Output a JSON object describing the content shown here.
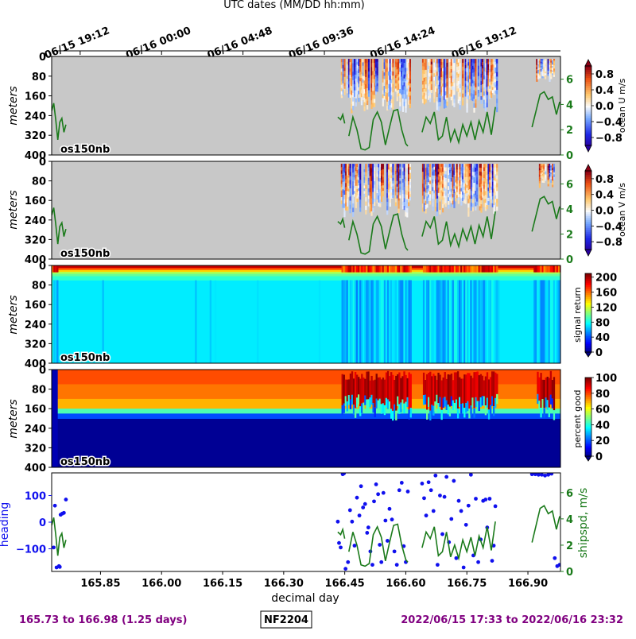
{
  "figure": {
    "top_axis_label": "UTC dates (MM/DD hh:mm)",
    "bottom_axis_label": "decimal day",
    "footer_left": "165.73 to 166.98 (1.25 days)",
    "footer_center": "NF2204",
    "footer_right": "2022/06/15 17:33 to 2022/06/16 23:32",
    "colors": {
      "nodata": "#c8c8c8",
      "shipspd": "#1a7a1a",
      "heading": "#1010ee",
      "footer_text": "#800080"
    }
  },
  "chart_data": [
    {
      "type": "heatmap",
      "panel": "u",
      "ylabel": "meters",
      "instrument_label": "os150nb",
      "colorbar_label": "ocean U m/s",
      "colorbar_ticks": [
        "0.8",
        "0.4",
        "0.0",
        "−0.4",
        "−0.8"
      ],
      "colorbar_range": [
        -1,
        1
      ],
      "colormap": "bwr",
      "y_ticks": [
        "0",
        "80",
        "160",
        "240",
        "320",
        "400"
      ],
      "y_range": [
        0,
        400
      ],
      "x_range": [
        165.73,
        166.98
      ],
      "right_axis_ticks": [
        "0",
        "2",
        "4",
        "6"
      ],
      "right_axis_range": [
        0,
        7.8
      ]
    },
    {
      "type": "heatmap",
      "panel": "v",
      "ylabel": "meters",
      "instrument_label": "os150nb",
      "colorbar_label": "ocean V m/s",
      "colorbar_ticks": [
        "0.8",
        "0.4",
        "0.0",
        "−0.4",
        "−0.8"
      ],
      "colorbar_range": [
        -1,
        1
      ],
      "colormap": "bwr",
      "y_ticks": [
        "0",
        "80",
        "160",
        "240",
        "320",
        "400"
      ],
      "y_range": [
        0,
        400
      ],
      "x_range": [
        165.73,
        166.98
      ],
      "right_axis_ticks": [
        "0",
        "2",
        "4",
        "6"
      ],
      "right_axis_range": [
        0,
        7.8
      ]
    },
    {
      "type": "heatmap",
      "panel": "amp",
      "ylabel": "meters",
      "instrument_label": "os150nb",
      "colorbar_label": "signal return",
      "colorbar_ticks": [
        "200",
        "160",
        "120",
        "80",
        "40",
        "0"
      ],
      "colorbar_range": [
        0,
        210
      ],
      "colormap": "jet",
      "y_ticks": [
        "0",
        "80",
        "160",
        "240",
        "320",
        "400"
      ],
      "y_range": [
        0,
        400
      ],
      "x_range": [
        165.73,
        166.98
      ]
    },
    {
      "type": "heatmap",
      "panel": "pg",
      "ylabel": "meters",
      "instrument_label": "os150nb",
      "colorbar_label": "percent good",
      "colorbar_ticks": [
        "100",
        "80",
        "60",
        "40",
        "20",
        "0"
      ],
      "colorbar_range": [
        0,
        100
      ],
      "colormap": "jet",
      "y_ticks": [
        "0",
        "80",
        "160",
        "240",
        "320",
        "400"
      ],
      "y_range": [
        0,
        400
      ],
      "x_range": [
        165.73,
        166.98
      ]
    },
    {
      "type": "scatter",
      "panel": "heading",
      "ylabel": "heading",
      "right_ylabel": "shipspd, m/s",
      "y_ticks": [
        "100",
        "0",
        "−100"
      ],
      "y_range": [
        -185,
        185
      ],
      "right_axis_ticks": [
        "0",
        "2",
        "4",
        "6"
      ],
      "right_axis_range": [
        0,
        7.5
      ],
      "x_range": [
        165.73,
        166.98
      ],
      "x_ticks": [
        "165.85",
        "166.00",
        "166.15",
        "166.30",
        "166.45",
        "166.60",
        "166.75",
        "166.90"
      ],
      "top_ticks": [
        "06/15 19:12",
        "06/16 00:00",
        "06/16 04:48",
        "06/16 09:36",
        "06/16 14:24",
        "06/16 19:12"
      ],
      "series": [
        {
          "kind": "scatter",
          "x": [
            165.735,
            165.738,
            165.742,
            165.748,
            165.75,
            165.752,
            165.756,
            165.76,
            165.765,
            166.433,
            166.436,
            166.44,
            166.445,
            166.448,
            166.452,
            166.458,
            166.463,
            166.468,
            166.474,
            166.48,
            166.486,
            166.49,
            166.495,
            166.5,
            166.505,
            166.508,
            166.513,
            166.518,
            166.522,
            166.527,
            166.532,
            166.536,
            166.54,
            166.545,
            166.55,
            166.555,
            166.56,
            166.566,
            166.572,
            166.578,
            166.584,
            166.59,
            166.595,
            166.6,
            166.605,
            166.64,
            166.645,
            166.65,
            166.656,
            166.662,
            166.668,
            166.673,
            166.678,
            166.684,
            166.69,
            166.695,
            166.7,
            166.706,
            166.712,
            166.718,
            166.724,
            166.73,
            166.736,
            166.742,
            166.748,
            166.754,
            166.76,
            166.766,
            166.772,
            166.778,
            166.784,
            166.79,
            166.796,
            166.8,
            166.806,
            166.812,
            166.816,
            166.82,
            166.91,
            166.918,
            166.926,
            166.934,
            166.942,
            166.95,
            166.958,
            166.966,
            166.972,
            166.978
          ],
          "y": [
            -95,
            62,
            -170,
            -165,
            -168,
            28,
            32,
            35,
            85,
            2,
            -78,
            -95,
            180,
            183,
            -175,
            -150,
            45,
            2,
            -88,
            92,
            25,
            135,
            55,
            68,
            -40,
            -20,
            -110,
            -160,
            78,
            142,
            105,
            -85,
            -150,
            110,
            6,
            -70,
            50,
            10,
            -110,
            -160,
            120,
            148,
            -90,
            -150,
            115,
            145,
            90,
            25,
            150,
            120,
            42,
            175,
            -160,
            100,
            -45,
            95,
            170,
            -75,
            12,
            155,
            -135,
            80,
            42,
            -170,
            -10,
            62,
            178,
            -125,
            88,
            -150,
            -65,
            80,
            85,
            -20,
            88,
            -145,
            -88,
            60,
            180,
            180,
            178,
            178,
            175,
            178,
            182,
            -135,
            -165,
            -160
          ],
          "color": "#1010ee",
          "axis": "left"
        }
      ]
    }
  ]
}
